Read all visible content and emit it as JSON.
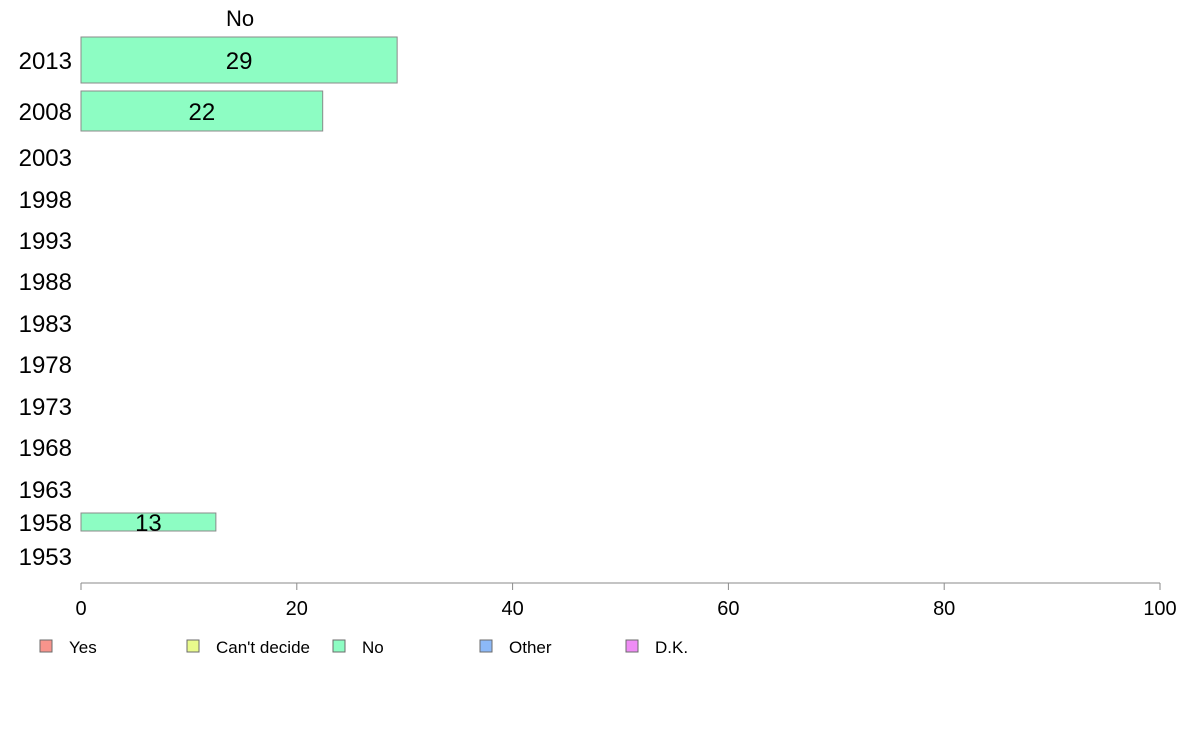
{
  "chart_data": {
    "type": "bar",
    "orientation": "horizontal",
    "stacked": true,
    "column_header": "No",
    "categories": [
      "2013",
      "2008",
      "2003",
      "1998",
      "1993",
      "1988",
      "1983",
      "1978",
      "1973",
      "1968",
      "1963",
      "1958",
      "1953"
    ],
    "series": [
      {
        "name": "Yes",
        "color": "#f8948c",
        "values": [
          null,
          null,
          null,
          null,
          null,
          null,
          null,
          null,
          null,
          null,
          null,
          null,
          null
        ]
      },
      {
        "name": "Can't decide",
        "color": "#e9fb8c",
        "values": [
          null,
          null,
          null,
          null,
          null,
          null,
          null,
          null,
          null,
          null,
          null,
          null,
          null
        ]
      },
      {
        "name": "No",
        "color": "#8dfdc3",
        "values": [
          29.3,
          22.4,
          null,
          null,
          null,
          null,
          null,
          null,
          null,
          null,
          null,
          12.5,
          null
        ]
      },
      {
        "name": "Other",
        "color": "#8cb9f8",
        "values": [
          null,
          null,
          null,
          null,
          null,
          null,
          null,
          null,
          null,
          null,
          null,
          null,
          null
        ]
      },
      {
        "name": "D.K.",
        "color": "#ef8cf5",
        "values": [
          null,
          null,
          null,
          null,
          null,
          null,
          null,
          null,
          null,
          null,
          null,
          null,
          null
        ]
      }
    ],
    "data_labels": [
      "29",
      "22",
      "",
      "",
      "",
      "",
      "",
      "",
      "",
      "",
      "",
      "13",
      ""
    ],
    "xlim": [
      0,
      100
    ],
    "x_ticks": [
      0,
      20,
      40,
      60,
      80,
      100
    ],
    "grid": false,
    "legend_position": "bottom",
    "title": "",
    "xlabel": "",
    "ylabel": ""
  }
}
